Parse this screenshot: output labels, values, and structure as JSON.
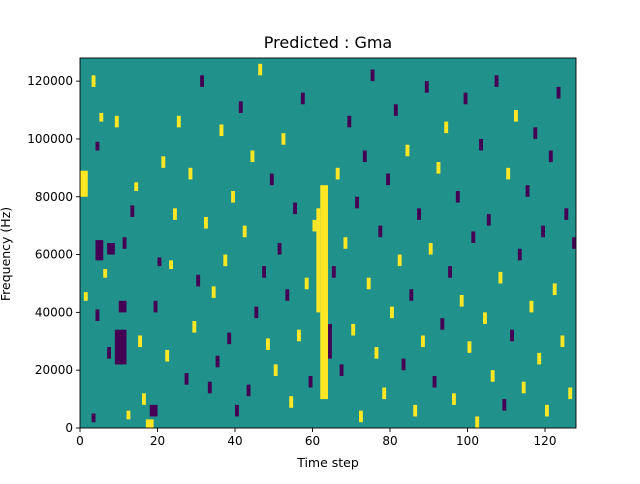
{
  "chart_data": {
    "type": "heatmap",
    "title": "Predicted : Gma",
    "xlabel": "Time step",
    "ylabel": "Frequency (Hz)",
    "xlim": [
      0,
      128
    ],
    "ylim": [
      0,
      128000
    ],
    "x_ticks": [
      0,
      20,
      40,
      60,
      80,
      100,
      120
    ],
    "y_ticks": [
      0,
      20000,
      40000,
      60000,
      80000,
      100000,
      120000
    ],
    "y_tick_labels": [
      "0",
      "20000",
      "40000",
      "60000",
      "80000",
      "100000",
      "120000"
    ],
    "colormap": "viridis",
    "value_range": [
      -1,
      1
    ],
    "background_value": 0,
    "colors": {
      "low": "#440154",
      "mid": "#21918c",
      "high": "#fde725"
    },
    "n_time_steps": 128,
    "n_freq_bins": 128,
    "freq_bin_hz": 1000,
    "cells_note": "each entry [time_step_start, time_step_end, freq_hz_start, freq_hz_end, value]",
    "cells": [
      [
        0,
        2,
        80000,
        89000,
        1
      ],
      [
        1,
        2,
        44000,
        47000,
        1
      ],
      [
        3,
        4,
        118000,
        122000,
        1
      ],
      [
        3,
        4,
        2000,
        5000,
        -1
      ],
      [
        4,
        5,
        96000,
        99000,
        -1
      ],
      [
        4,
        5,
        37000,
        41000,
        -1
      ],
      [
        5,
        6,
        106000,
        109000,
        1
      ],
      [
        4,
        6,
        58000,
        65000,
        -1
      ],
      [
        6,
        7,
        52000,
        55000,
        1
      ],
      [
        7,
        8,
        24000,
        28000,
        -1
      ],
      [
        7,
        9,
        60000,
        64000,
        -1
      ],
      [
        9,
        10,
        104000,
        108000,
        1
      ],
      [
        9,
        12,
        22000,
        34000,
        -1
      ],
      [
        10,
        12,
        40000,
        44000,
        -1
      ],
      [
        11,
        12,
        62000,
        66000,
        -1
      ],
      [
        12,
        13,
        3000,
        6000,
        1
      ],
      [
        13,
        14,
        73000,
        77000,
        -1
      ],
      [
        14,
        15,
        82000,
        85000,
        1
      ],
      [
        15,
        16,
        28000,
        32000,
        1
      ],
      [
        16,
        17,
        8000,
        12000,
        1
      ],
      [
        17,
        19,
        0,
        3000,
        1
      ],
      [
        18,
        20,
        4000,
        8000,
        -1
      ],
      [
        19,
        20,
        40000,
        44000,
        -1
      ],
      [
        20,
        21,
        56000,
        59000,
        -1
      ],
      [
        21,
        22,
        90000,
        94000,
        1
      ],
      [
        22,
        23,
        23000,
        27000,
        1
      ],
      [
        23,
        24,
        55000,
        58000,
        1
      ],
      [
        24,
        25,
        72000,
        76000,
        1
      ],
      [
        25,
        26,
        104000,
        108000,
        1
      ],
      [
        27,
        28,
        15000,
        19000,
        -1
      ],
      [
        28,
        29,
        86000,
        90000,
        1
      ],
      [
        29,
        30,
        33000,
        37000,
        1
      ],
      [
        30,
        31,
        49000,
        53000,
        -1
      ],
      [
        31,
        32,
        118000,
        122000,
        -1
      ],
      [
        32,
        33,
        69000,
        73000,
        1
      ],
      [
        33,
        34,
        12000,
        16000,
        -1
      ],
      [
        34,
        35,
        45000,
        49000,
        1
      ],
      [
        35,
        36,
        21000,
        25000,
        -1
      ],
      [
        36,
        37,
        101000,
        105000,
        1
      ],
      [
        37,
        38,
        56000,
        60000,
        1
      ],
      [
        38,
        39,
        29000,
        33000,
        -1
      ],
      [
        39,
        40,
        78000,
        82000,
        1
      ],
      [
        40,
        41,
        4000,
        8000,
        -1
      ],
      [
        41,
        42,
        109000,
        113000,
        -1
      ],
      [
        42,
        43,
        66000,
        70000,
        1
      ],
      [
        43,
        44,
        11000,
        15000,
        -1
      ],
      [
        44,
        45,
        92000,
        96000,
        1
      ],
      [
        45,
        46,
        38000,
        42000,
        -1
      ],
      [
        46,
        47,
        122000,
        126000,
        1
      ],
      [
        47,
        48,
        52000,
        56000,
        -1
      ],
      [
        48,
        49,
        27000,
        31000,
        1
      ],
      [
        49,
        50,
        84000,
        88000,
        -1
      ],
      [
        50,
        51,
        18000,
        22000,
        1
      ],
      [
        51,
        52,
        60000,
        64000,
        -1
      ],
      [
        52,
        53,
        98000,
        102000,
        1
      ],
      [
        53,
        54,
        44000,
        48000,
        -1
      ],
      [
        54,
        55,
        7000,
        11000,
        1
      ],
      [
        55,
        56,
        74000,
        78000,
        -1
      ],
      [
        56,
        57,
        30000,
        34000,
        1
      ],
      [
        57,
        58,
        112000,
        116000,
        -1
      ],
      [
        58,
        59,
        48000,
        52000,
        1
      ],
      [
        59,
        60,
        14000,
        18000,
        -1
      ],
      [
        60,
        61,
        68000,
        72000,
        1
      ],
      [
        61,
        62,
        40000,
        76000,
        1
      ],
      [
        62,
        64,
        10000,
        84000,
        1
      ],
      [
        64,
        65,
        24000,
        36000,
        -1
      ],
      [
        65,
        66,
        52000,
        56000,
        -1
      ],
      [
        66,
        67,
        86000,
        90000,
        1
      ],
      [
        67,
        68,
        18000,
        22000,
        -1
      ],
      [
        68,
        69,
        62000,
        66000,
        1
      ],
      [
        69,
        70,
        104000,
        108000,
        -1
      ],
      [
        70,
        71,
        32000,
        36000,
        1
      ],
      [
        71,
        72,
        76000,
        80000,
        -1
      ],
      [
        72,
        73,
        2000,
        6000,
        1
      ],
      [
        73,
        74,
        92000,
        96000,
        -1
      ],
      [
        74,
        75,
        48000,
        52000,
        1
      ],
      [
        75,
        76,
        120000,
        124000,
        -1
      ],
      [
        76,
        77,
        24000,
        28000,
        1
      ],
      [
        77,
        78,
        66000,
        70000,
        -1
      ],
      [
        78,
        79,
        10000,
        14000,
        1
      ],
      [
        79,
        80,
        84000,
        88000,
        -1
      ],
      [
        80,
        81,
        38000,
        42000,
        1
      ],
      [
        81,
        82,
        108000,
        112000,
        -1
      ],
      [
        82,
        83,
        56000,
        60000,
        1
      ],
      [
        83,
        84,
        20000,
        24000,
        -1
      ],
      [
        84,
        85,
        94000,
        98000,
        1
      ],
      [
        85,
        86,
        44000,
        48000,
        -1
      ],
      [
        86,
        87,
        4000,
        8000,
        1
      ],
      [
        87,
        88,
        72000,
        76000,
        -1
      ],
      [
        88,
        89,
        28000,
        32000,
        1
      ],
      [
        89,
        90,
        116000,
        120000,
        -1
      ],
      [
        90,
        91,
        60000,
        64000,
        1
      ],
      [
        91,
        92,
        14000,
        18000,
        -1
      ],
      [
        92,
        93,
        88000,
        92000,
        1
      ],
      [
        93,
        94,
        34000,
        38000,
        -1
      ],
      [
        94,
        95,
        102000,
        106000,
        1
      ],
      [
        95,
        96,
        52000,
        56000,
        -1
      ],
      [
        96,
        97,
        8000,
        12000,
        1
      ],
      [
        97,
        98,
        78000,
        82000,
        -1
      ],
      [
        98,
        99,
        42000,
        46000,
        1
      ],
      [
        99,
        100,
        112000,
        116000,
        -1
      ],
      [
        100,
        101,
        26000,
        30000,
        1
      ],
      [
        101,
        102,
        64000,
        68000,
        -1
      ],
      [
        102,
        103,
        0,
        4000,
        1
      ],
      [
        103,
        104,
        96000,
        100000,
        -1
      ],
      [
        104,
        105,
        36000,
        40000,
        1
      ],
      [
        105,
        106,
        70000,
        74000,
        -1
      ],
      [
        106,
        107,
        16000,
        20000,
        1
      ],
      [
        107,
        108,
        118000,
        122000,
        -1
      ],
      [
        108,
        109,
        50000,
        54000,
        1
      ],
      [
        109,
        110,
        6000,
        10000,
        -1
      ],
      [
        110,
        111,
        86000,
        90000,
        1
      ],
      [
        111,
        112,
        30000,
        34000,
        -1
      ],
      [
        112,
        113,
        106000,
        110000,
        1
      ],
      [
        113,
        114,
        58000,
        62000,
        -1
      ],
      [
        114,
        115,
        12000,
        16000,
        1
      ],
      [
        115,
        116,
        80000,
        84000,
        -1
      ],
      [
        116,
        117,
        40000,
        44000,
        1
      ],
      [
        117,
        118,
        100000,
        104000,
        -1
      ],
      [
        118,
        119,
        22000,
        26000,
        1
      ],
      [
        119,
        120,
        66000,
        70000,
        -1
      ],
      [
        120,
        121,
        4000,
        8000,
        1
      ],
      [
        121,
        122,
        92000,
        96000,
        -1
      ],
      [
        122,
        123,
        46000,
        50000,
        1
      ],
      [
        123,
        124,
        114000,
        118000,
        -1
      ],
      [
        124,
        125,
        28000,
        32000,
        1
      ],
      [
        125,
        126,
        72000,
        76000,
        -1
      ],
      [
        126,
        127,
        10000,
        14000,
        1
      ],
      [
        127,
        128,
        62000,
        66000,
        -1
      ]
    ]
  }
}
